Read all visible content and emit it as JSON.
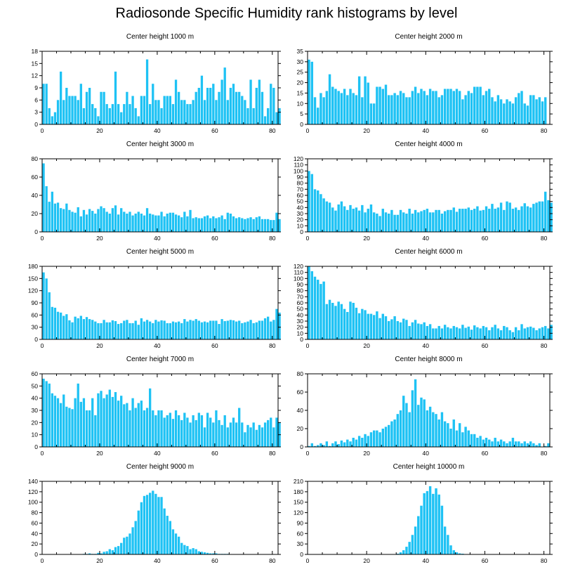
{
  "title": "Radiosonde Specific Humidity rank histograms by level",
  "chart_data": [
    {
      "type": "bar",
      "title": "Center height 1000 m",
      "xlim": [
        0,
        82
      ],
      "ylim": [
        0,
        18
      ],
      "xticks": [
        0,
        20,
        40,
        60,
        80
      ],
      "yticks": [
        0,
        3,
        6,
        9,
        12,
        15,
        18
      ],
      "values": [
        10,
        10,
        4,
        2,
        3,
        6,
        13,
        6,
        9,
        7,
        7,
        7,
        6,
        10,
        4,
        8,
        9,
        5,
        4,
        2,
        8,
        8,
        5,
        4,
        5,
        13,
        5,
        3,
        5,
        8,
        5,
        7,
        4,
        2,
        7,
        7,
        16,
        5,
        10,
        6,
        6,
        4,
        7,
        7,
        7,
        5,
        11,
        8,
        6,
        6,
        5,
        5,
        6,
        8,
        9,
        12,
        6,
        9,
        9,
        10,
        6,
        8,
        11,
        14,
        6,
        9,
        10,
        8,
        8,
        7,
        6,
        4,
        11,
        4,
        9,
        11,
        8,
        2,
        4,
        10,
        9,
        3,
        4
      ]
    },
    {
      "type": "bar",
      "title": "Center height 2000 m",
      "xlim": [
        0,
        82
      ],
      "ylim": [
        0,
        35
      ],
      "xticks": [
        0,
        20,
        40,
        60,
        80
      ],
      "yticks": [
        0,
        5,
        10,
        15,
        20,
        25,
        30,
        35
      ],
      "values": [
        31,
        30,
        13,
        8,
        15,
        13,
        16,
        24,
        18,
        17,
        16,
        15,
        17,
        14,
        17,
        15,
        14,
        23,
        13,
        23,
        20,
        10,
        10,
        18,
        18,
        17,
        19,
        14,
        14,
        15,
        14,
        16,
        15,
        13,
        13,
        16,
        18,
        15,
        17,
        16,
        14,
        17,
        16,
        16,
        13,
        14,
        17,
        17,
        17,
        16,
        17,
        16,
        12,
        14,
        16,
        15,
        18,
        18,
        18,
        14,
        16,
        17,
        13,
        11,
        14,
        12,
        10,
        12,
        11,
        10,
        13,
        15,
        16,
        10,
        9,
        14,
        14,
        12,
        13,
        11,
        13
      ]
    },
    {
      "type": "bar",
      "title": "Center height 3000 m",
      "xlim": [
        0,
        82
      ],
      "ylim": [
        0,
        80
      ],
      "xticks": [
        0,
        20,
        40,
        60,
        80
      ],
      "yticks": [
        0,
        20,
        40,
        60,
        80
      ],
      "values": [
        75,
        50,
        33,
        44,
        31,
        32,
        26,
        25,
        31,
        24,
        22,
        21,
        27,
        17,
        24,
        19,
        25,
        23,
        20,
        25,
        28,
        26,
        22,
        20,
        26,
        29,
        19,
        26,
        22,
        20,
        22,
        18,
        20,
        22,
        20,
        18,
        26,
        20,
        19,
        18,
        18,
        22,
        17,
        20,
        21,
        21,
        19,
        18,
        16,
        22,
        17,
        24,
        15,
        16,
        15,
        15,
        17,
        18,
        15,
        17,
        15,
        16,
        18,
        14,
        21,
        20,
        17,
        15,
        16,
        15,
        14,
        15,
        16,
        14,
        16,
        17,
        14,
        14,
        14,
        13,
        13,
        21,
        14
      ]
    },
    {
      "type": "bar",
      "title": "Center height 4000 m",
      "xlim": [
        0,
        82
      ],
      "ylim": [
        0,
        120
      ],
      "xticks": [
        0,
        20,
        40,
        60,
        80
      ],
      "yticks": [
        0,
        10,
        20,
        30,
        40,
        50,
        60,
        70,
        80,
        90,
        100,
        110,
        120
      ],
      "values": [
        100,
        95,
        70,
        68,
        62,
        55,
        50,
        48,
        40,
        35,
        45,
        50,
        42,
        36,
        44,
        38,
        40,
        35,
        44,
        32,
        38,
        45,
        32,
        30,
        26,
        38,
        32,
        30,
        36,
        28,
        28,
        36,
        32,
        30,
        38,
        30,
        36,
        32,
        34,
        36,
        38,
        32,
        32,
        36,
        36,
        30,
        34,
        36,
        36,
        40,
        33,
        38,
        38,
        38,
        40,
        36,
        38,
        42,
        35,
        36,
        42,
        38,
        46,
        38,
        40,
        48,
        36,
        50,
        48,
        38,
        40,
        36,
        42,
        47,
        42,
        40,
        46,
        48,
        50,
        50,
        66,
        52,
        48
      ]
    },
    {
      "type": "bar",
      "title": "Center height 5000 m",
      "xlim": [
        0,
        82
      ],
      "ylim": [
        0,
        180
      ],
      "xticks": [
        0,
        20,
        40,
        60,
        80
      ],
      "yticks": [
        0,
        30,
        60,
        90,
        120,
        150,
        180
      ],
      "values": [
        165,
        150,
        116,
        80,
        78,
        68,
        66,
        58,
        62,
        47,
        42,
        56,
        52,
        58,
        50,
        55,
        50,
        48,
        44,
        40,
        40,
        48,
        42,
        42,
        47,
        45,
        38,
        40,
        46,
        48,
        40,
        40,
        46,
        36,
        52,
        44,
        48,
        44,
        40,
        48,
        44,
        47,
        46,
        40,
        40,
        44,
        42,
        44,
        40,
        50,
        44,
        48,
        46,
        50,
        46,
        42,
        44,
        42,
        46,
        46,
        46,
        38,
        50,
        45,
        46,
        48,
        47,
        44,
        46,
        40,
        42,
        44,
        48,
        40,
        42,
        46,
        46,
        52,
        56,
        44,
        48,
        75,
        66
      ]
    },
    {
      "type": "bar",
      "title": "Center height 6000 m",
      "xlim": [
        0,
        82
      ],
      "ylim": [
        0,
        120
      ],
      "xticks": [
        0,
        20,
        40,
        60,
        80
      ],
      "yticks": [
        0,
        10,
        20,
        30,
        40,
        50,
        60,
        70,
        80,
        90,
        100,
        110,
        120
      ],
      "values": [
        120,
        112,
        103,
        98,
        91,
        95,
        58,
        65,
        60,
        55,
        62,
        58,
        50,
        45,
        62,
        60,
        52,
        43,
        50,
        48,
        42,
        42,
        40,
        46,
        35,
        42,
        38,
        30,
        33,
        38,
        30,
        28,
        34,
        32,
        22,
        28,
        32,
        26,
        25,
        28,
        22,
        25,
        18,
        18,
        22,
        18,
        24,
        20,
        18,
        22,
        20,
        18,
        24,
        19,
        21,
        16,
        23,
        20,
        18,
        22,
        20,
        15,
        20,
        24,
        18,
        15,
        22,
        20,
        15,
        12,
        20,
        15,
        25,
        18,
        20,
        21,
        19,
        15,
        18,
        20,
        22,
        18,
        24
      ]
    },
    {
      "type": "bar",
      "title": "Center height 7000 m",
      "xlim": [
        0,
        82
      ],
      "ylim": [
        0,
        60
      ],
      "xticks": [
        0,
        20,
        40,
        60,
        80
      ],
      "yticks": [
        0,
        10,
        20,
        30,
        40,
        50,
        60
      ],
      "values": [
        56,
        54,
        52,
        44,
        42,
        40,
        36,
        43,
        33,
        32,
        31,
        40,
        52,
        37,
        40,
        30,
        30,
        40,
        26,
        44,
        46,
        40,
        43,
        47,
        41,
        45,
        38,
        42,
        35,
        36,
        30,
        40,
        32,
        36,
        38,
        30,
        32,
        48,
        30,
        26,
        30,
        30,
        24,
        26,
        28,
        23,
        30,
        26,
        22,
        28,
        24,
        20,
        26,
        22,
        28,
        26,
        16,
        28,
        24,
        20,
        30,
        22,
        18,
        26,
        16,
        20,
        24,
        20,
        32,
        20,
        12,
        18,
        16,
        20,
        14,
        18,
        16,
        20,
        22,
        24,
        16,
        24,
        20
      ]
    },
    {
      "type": "bar",
      "title": "Center height 8000 m",
      "xlim": [
        0,
        82
      ],
      "ylim": [
        0,
        80
      ],
      "xticks": [
        0,
        20,
        40,
        60,
        80
      ],
      "yticks": [
        0,
        20,
        40,
        60,
        80
      ],
      "values": [
        1,
        4,
        1,
        2,
        4,
        2,
        6,
        1,
        4,
        6,
        3,
        7,
        5,
        8,
        6,
        10,
        8,
        12,
        10,
        14,
        12,
        16,
        18,
        18,
        16,
        20,
        22,
        24,
        28,
        30,
        36,
        40,
        56,
        48,
        38,
        62,
        74,
        46,
        54,
        52,
        40,
        44,
        38,
        36,
        30,
        38,
        28,
        26,
        20,
        30,
        18,
        26,
        16,
        22,
        18,
        14,
        14,
        10,
        12,
        8,
        10,
        8,
        6,
        10,
        6,
        8,
        6,
        4,
        6,
        10,
        6,
        6,
        4,
        6,
        4,
        6,
        4,
        2,
        4,
        0,
        1,
        4
      ]
    },
    {
      "type": "bar",
      "title": "Center height 9000 m",
      "xlim": [
        0,
        82
      ],
      "ylim": [
        0,
        140
      ],
      "xticks": [
        0,
        20,
        40,
        60,
        80
      ],
      "yticks": [
        0,
        20,
        40,
        60,
        80,
        100,
        120,
        140
      ],
      "values": [
        0,
        0,
        0,
        0,
        0,
        0,
        0,
        0,
        0,
        0,
        0,
        0,
        0,
        0,
        1,
        1,
        2,
        1,
        1,
        3,
        2,
        5,
        6,
        10,
        8,
        14,
        16,
        22,
        32,
        34,
        40,
        52,
        64,
        84,
        100,
        112,
        114,
        118,
        122,
        116,
        110,
        110,
        88,
        74,
        64,
        48,
        40,
        34,
        22,
        18,
        16,
        10,
        12,
        10,
        6,
        5,
        4,
        3,
        2,
        2,
        2,
        1,
        1,
        1,
        1,
        0,
        0,
        0,
        0,
        0,
        0,
        0,
        0,
        0,
        0,
        0,
        0,
        0,
        0,
        0,
        0,
        0
      ]
    },
    {
      "type": "bar",
      "title": "Center height 10000 m",
      "xlim": [
        0,
        82
      ],
      "ylim": [
        0,
        210
      ],
      "xticks": [
        0,
        20,
        40,
        60,
        80
      ],
      "yticks": [
        0,
        30,
        60,
        90,
        120,
        150,
        180,
        210
      ],
      "values": [
        0,
        0,
        0,
        0,
        0,
        0,
        0,
        0,
        0,
        0,
        0,
        0,
        0,
        0,
        0,
        0,
        0,
        0,
        0,
        0,
        0,
        0,
        0,
        0,
        0,
        0,
        0,
        0,
        0,
        1,
        2,
        6,
        12,
        22,
        36,
        56,
        80,
        110,
        140,
        176,
        182,
        196,
        174,
        190,
        172,
        140,
        80,
        56,
        26,
        12,
        6,
        3,
        2,
        1,
        1,
        0,
        0,
        0,
        0,
        0,
        0,
        0,
        0,
        0,
        0,
        0,
        0,
        0,
        0,
        0,
        1,
        1,
        0,
        1,
        1,
        0,
        0,
        0,
        0,
        0,
        0,
        0
      ]
    }
  ]
}
